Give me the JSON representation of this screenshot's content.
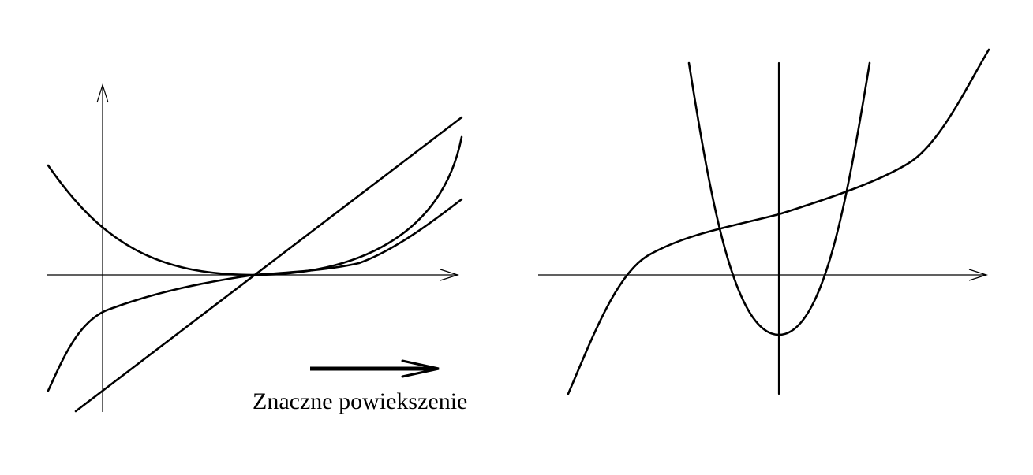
{
  "caption": "Znaczne powiekszenie",
  "colors": {
    "background": "#ffffff",
    "ink": "#000000"
  },
  "panels": {
    "left": {
      "curves": [
        "parabola",
        "cubic",
        "line",
        "flattened-curve"
      ]
    },
    "right": {
      "curves": [
        "parabola",
        "cubic"
      ]
    }
  }
}
